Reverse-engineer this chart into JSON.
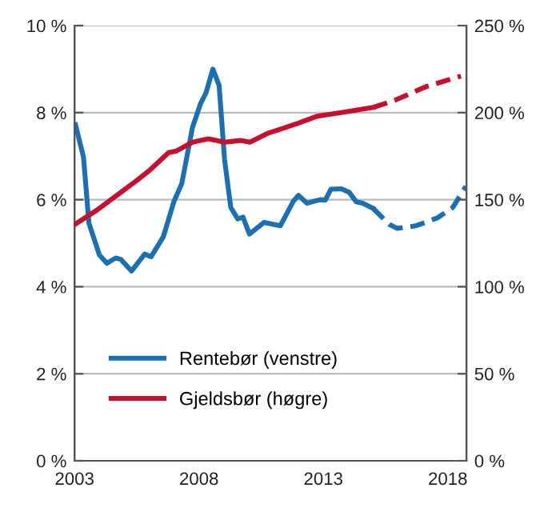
{
  "chart_data": {
    "type": "line",
    "xlim": [
      2003,
      2018.75
    ],
    "xticks": [
      2003,
      2008,
      2013,
      2018
    ],
    "ylim": [
      0,
      10
    ],
    "yticks": [
      {
        "value": 0,
        "label": "0 %"
      },
      {
        "value": 2,
        "label": "2 %"
      },
      {
        "value": 4,
        "label": "4 %"
      },
      {
        "value": 6,
        "label": "6 %"
      },
      {
        "value": 8,
        "label": "8 %"
      },
      {
        "value": 10,
        "label": "10 %"
      }
    ],
    "y2lim": [
      0,
      250
    ],
    "y2ticks": [
      {
        "value": 0,
        "label": "0 %"
      },
      {
        "value": 50,
        "label": "50 %"
      },
      {
        "value": 100,
        "label": "100 %"
      },
      {
        "value": 150,
        "label": "150 %"
      },
      {
        "value": 200,
        "label": "200 %"
      },
      {
        "value": 250,
        "label": "250 %"
      }
    ],
    "grid": "y",
    "legend": "lower left",
    "marker": "none",
    "series": [
      {
        "name": "Rentebør (venstre)",
        "color": "#1a6fb5",
        "line_style": "solid",
        "x": [
          2003.04,
          2003.36,
          2003.58,
          2004.0,
          2004.3,
          2004.65,
          2004.86,
          2005.29,
          2005.82,
          2006.08,
          2006.57,
          2006.99,
          2007.31,
          2007.74,
          2008.06,
          2008.28,
          2008.56,
          2008.81,
          2009.03,
          2009.28,
          2009.56,
          2009.77,
          2010.03,
          2010.62,
          2011.27,
          2011.8,
          2012.0,
          2012.34,
          2012.87,
          2013.08,
          2013.3,
          2013.72,
          2014.04,
          2014.32,
          2014.58,
          2015.0
        ],
        "values": [
          7.72,
          6.98,
          5.46,
          4.73,
          4.54,
          4.66,
          4.63,
          4.36,
          4.75,
          4.69,
          5.15,
          5.95,
          6.37,
          7.66,
          8.2,
          8.45,
          9.0,
          8.63,
          6.92,
          5.82,
          5.56,
          5.6,
          5.21,
          5.48,
          5.4,
          5.97,
          6.1,
          5.92,
          6.0,
          5.99,
          6.24,
          6.25,
          6.17,
          5.95,
          5.92,
          5.8
        ]
      },
      {
        "color": "#1a6fb5",
        "line_style": "dashed",
        "x": [
          2015.0,
          2015.65,
          2015.97,
          2016.72,
          2017.58,
          2018.2,
          2018.73
        ],
        "values": [
          5.8,
          5.43,
          5.34,
          5.4,
          5.58,
          5.82,
          6.31
        ]
      },
      {
        "name": "Gjeldsbør (høgre)",
        "color": "#c8102e",
        "axis": "y2",
        "line_style": "solid",
        "x": [
          2003.04,
          2003.9,
          2004.75,
          2005.5,
          2006.03,
          2006.78,
          2007.1,
          2007.74,
          2008.38,
          2009.03,
          2009.67,
          2010.05,
          2010.74,
          2011.38,
          2012.0,
          2012.76,
          2013.72,
          2015.0
        ],
        "values": [
          136,
          144,
          153,
          161,
          167,
          177,
          178,
          183,
          185,
          183,
          184,
          183,
          188,
          191,
          194,
          198,
          200,
          203
        ]
      },
      {
        "color": "#c8102e",
        "axis": "y2",
        "line_style": "dashed",
        "x": [
          2015.0,
          2015.86,
          2017.14,
          2018.53
        ],
        "values": [
          203,
          207,
          215,
          221
        ]
      }
    ]
  }
}
